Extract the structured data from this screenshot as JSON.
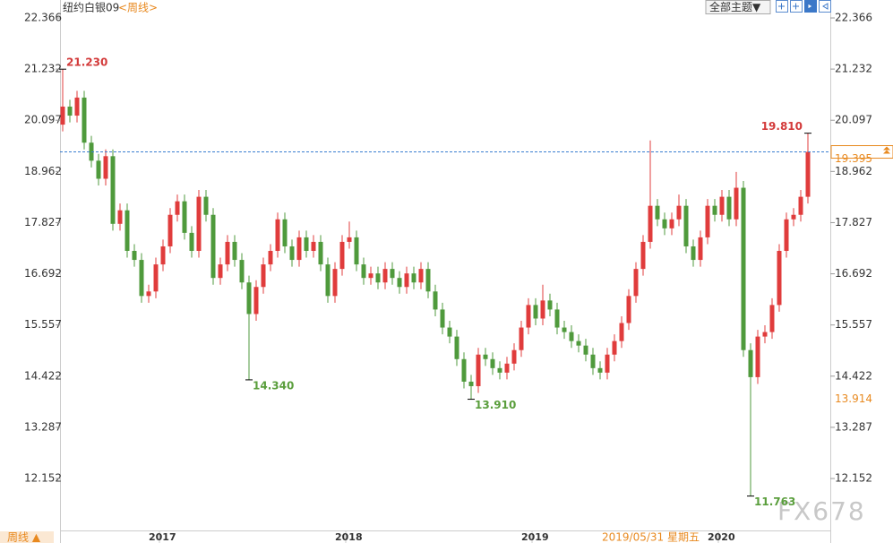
{
  "chart_data": {
    "type": "candlestick",
    "title": "纽约白银09",
    "period": "<周线>",
    "toolbar_button": "全部主题▼",
    "period_button": "周线 ▲",
    "cursor_date": "2019/05/31 星期五",
    "watermark": "FX678",
    "up_color": "#e03c3c",
    "down_color": "#4f9a3c",
    "ylim": [
      11.0,
      22.764
    ],
    "yticks": [
      22.366,
      21.232,
      20.097,
      18.962,
      17.827,
      16.692,
      15.557,
      14.422,
      13.287,
      12.152
    ],
    "last_price": 19.395,
    "ref_price": 13.914,
    "annotations": [
      {
        "value": 21.23,
        "label": "21.230",
        "color": "#d33a3a"
      },
      {
        "value": 14.34,
        "label": "14.340",
        "color": "#5a9e3c"
      },
      {
        "value": 13.91,
        "label": "13.910",
        "color": "#5a9e3c"
      },
      {
        "value": 19.81,
        "label": "19.810",
        "color": "#d33a3a"
      },
      {
        "value": 11.763,
        "label": "11.763",
        "color": "#5a9e3c"
      }
    ],
    "categories": [
      null,
      null,
      null,
      null,
      null,
      null,
      null,
      null,
      null,
      null,
      null,
      null,
      null,
      null,
      "2017",
      null,
      null,
      null,
      null,
      null,
      null,
      null,
      null,
      null,
      null,
      null,
      null,
      null,
      null,
      null,
      null,
      null,
      null,
      null,
      null,
      null,
      null,
      null,
      null,
      null,
      "2018",
      null,
      null,
      null,
      null,
      null,
      null,
      null,
      null,
      null,
      null,
      null,
      null,
      null,
      null,
      null,
      null,
      null,
      null,
      null,
      null,
      null,
      null,
      null,
      null,
      null,
      "2019",
      null,
      null,
      null,
      null,
      null,
      null,
      null,
      null,
      null,
      null,
      null,
      null,
      null,
      null,
      null,
      null,
      null,
      null,
      null,
      null,
      null,
      null,
      null,
      null,
      null,
      "2020",
      null,
      null,
      null,
      null,
      null,
      null,
      null,
      null,
      null,
      null,
      null,
      null
    ],
    "candles": [
      [
        20.0,
        21.23,
        19.85,
        20.4
      ],
      [
        20.4,
        20.55,
        20.05,
        20.2
      ],
      [
        20.2,
        20.75,
        20.05,
        20.6
      ],
      [
        20.6,
        20.75,
        19.45,
        19.6
      ],
      [
        19.6,
        19.75,
        19.05,
        19.2
      ],
      [
        19.2,
        19.35,
        18.65,
        18.8
      ],
      [
        18.8,
        19.45,
        18.65,
        19.3
      ],
      [
        19.3,
        19.45,
        17.65,
        17.8
      ],
      [
        17.8,
        18.25,
        17.65,
        18.1
      ],
      [
        18.1,
        18.25,
        17.05,
        17.2
      ],
      [
        17.2,
        17.35,
        16.85,
        17.0
      ],
      [
        17.0,
        17.15,
        16.05,
        16.2
      ],
      [
        16.2,
        16.45,
        16.05,
        16.3
      ],
      [
        16.3,
        17.05,
        16.15,
        16.9
      ],
      [
        16.9,
        17.45,
        16.75,
        17.3
      ],
      [
        17.3,
        18.15,
        17.15,
        18.0
      ],
      [
        18.0,
        18.45,
        17.85,
        18.3
      ],
      [
        18.3,
        18.45,
        17.45,
        17.6
      ],
      [
        17.6,
        17.75,
        17.05,
        17.2
      ],
      [
        17.2,
        18.55,
        17.05,
        18.4
      ],
      [
        18.4,
        18.55,
        17.85,
        18.0
      ],
      [
        18.0,
        18.15,
        16.45,
        16.6
      ],
      [
        16.6,
        17.05,
        16.45,
        16.9
      ],
      [
        16.9,
        17.55,
        16.75,
        17.4
      ],
      [
        17.4,
        17.55,
        16.85,
        17.0
      ],
      [
        17.0,
        17.15,
        16.35,
        16.5
      ],
      [
        16.5,
        16.65,
        14.34,
        15.8
      ],
      [
        15.8,
        16.55,
        15.65,
        16.4
      ],
      [
        16.4,
        17.05,
        16.25,
        16.9
      ],
      [
        16.9,
        17.35,
        16.75,
        17.2
      ],
      [
        17.2,
        18.05,
        17.05,
        17.9
      ],
      [
        17.9,
        18.05,
        17.15,
        17.3
      ],
      [
        17.3,
        17.45,
        16.85,
        17.0
      ],
      [
        17.0,
        17.65,
        16.85,
        17.5
      ],
      [
        17.5,
        17.65,
        17.05,
        17.2
      ],
      [
        17.2,
        17.55,
        17.05,
        17.4
      ],
      [
        17.4,
        17.55,
        16.75,
        16.9
      ],
      [
        16.9,
        17.05,
        16.05,
        16.2
      ],
      [
        16.2,
        16.95,
        16.05,
        16.8
      ],
      [
        16.8,
        17.55,
        16.65,
        17.4
      ],
      [
        17.4,
        17.85,
        17.25,
        17.5
      ],
      [
        17.5,
        17.65,
        16.75,
        16.9
      ],
      [
        16.9,
        17.05,
        16.45,
        16.6
      ],
      [
        16.6,
        16.85,
        16.45,
        16.7
      ],
      [
        16.7,
        16.85,
        16.35,
        16.5
      ],
      [
        16.5,
        16.95,
        16.35,
        16.8
      ],
      [
        16.8,
        16.95,
        16.45,
        16.6
      ],
      [
        16.6,
        16.75,
        16.25,
        16.4
      ],
      [
        16.4,
        16.85,
        16.25,
        16.7
      ],
      [
        16.7,
        16.85,
        16.35,
        16.5
      ],
      [
        16.5,
        16.95,
        16.35,
        16.8
      ],
      [
        16.8,
        16.95,
        16.15,
        16.3
      ],
      [
        16.3,
        16.45,
        15.75,
        15.9
      ],
      [
        15.9,
        16.05,
        15.35,
        15.5
      ],
      [
        15.5,
        15.65,
        15.15,
        15.3
      ],
      [
        15.3,
        15.45,
        14.65,
        14.8
      ],
      [
        14.8,
        14.95,
        14.15,
        14.3
      ],
      [
        14.3,
        14.45,
        13.91,
        14.2
      ],
      [
        14.2,
        15.05,
        14.05,
        14.9
      ],
      [
        14.9,
        15.05,
        14.65,
        14.8
      ],
      [
        14.8,
        14.95,
        14.45,
        14.6
      ],
      [
        14.6,
        14.75,
        14.35,
        14.5
      ],
      [
        14.5,
        14.85,
        14.35,
        14.7
      ],
      [
        14.7,
        15.15,
        14.55,
        15.0
      ],
      [
        15.0,
        15.65,
        14.85,
        15.5
      ],
      [
        15.5,
        16.15,
        15.35,
        16.0
      ],
      [
        16.0,
        16.15,
        15.55,
        15.7
      ],
      [
        15.7,
        16.45,
        15.55,
        16.1
      ],
      [
        16.1,
        16.25,
        15.75,
        15.9
      ],
      [
        15.9,
        16.05,
        15.35,
        15.5
      ],
      [
        15.5,
        15.65,
        15.25,
        15.4
      ],
      [
        15.4,
        15.55,
        15.05,
        15.2
      ],
      [
        15.2,
        15.35,
        14.95,
        15.1
      ],
      [
        15.1,
        15.25,
        14.75,
        14.9
      ],
      [
        14.9,
        15.05,
        14.45,
        14.6
      ],
      [
        14.6,
        14.75,
        14.35,
        14.5
      ],
      [
        14.5,
        15.05,
        14.35,
        14.9
      ],
      [
        14.9,
        15.35,
        14.75,
        15.2
      ],
      [
        15.2,
        15.75,
        15.05,
        15.6
      ],
      [
        15.6,
        16.35,
        15.45,
        16.2
      ],
      [
        16.2,
        16.95,
        16.05,
        16.8
      ],
      [
        16.8,
        17.55,
        16.65,
        17.4
      ],
      [
        17.4,
        19.65,
        17.25,
        18.2
      ],
      [
        18.2,
        18.35,
        17.75,
        17.9
      ],
      [
        17.9,
        18.05,
        17.55,
        17.7
      ],
      [
        17.7,
        18.05,
        17.55,
        17.9
      ],
      [
        17.9,
        18.45,
        17.75,
        18.2
      ],
      [
        18.2,
        18.35,
        17.15,
        17.3
      ],
      [
        17.3,
        17.45,
        16.85,
        17.0
      ],
      [
        17.0,
        17.65,
        16.85,
        17.5
      ],
      [
        17.5,
        18.35,
        17.35,
        18.2
      ],
      [
        18.2,
        18.35,
        17.85,
        18.0
      ],
      [
        18.0,
        18.55,
        17.85,
        18.4
      ],
      [
        18.4,
        18.55,
        17.75,
        17.9
      ],
      [
        17.9,
        18.95,
        17.75,
        18.6
      ],
      [
        18.6,
        18.75,
        14.85,
        15.0
      ],
      [
        15.0,
        15.15,
        11.763,
        14.4
      ],
      [
        14.4,
        15.45,
        14.25,
        15.3
      ],
      [
        15.3,
        15.55,
        15.15,
        15.4
      ],
      [
        15.4,
        16.15,
        15.25,
        16.0
      ],
      [
        16.0,
        17.35,
        15.85,
        17.2
      ],
      [
        17.2,
        18.05,
        17.05,
        17.9
      ],
      [
        17.9,
        18.15,
        17.75,
        18.0
      ],
      [
        18.0,
        18.55,
        17.85,
        18.4
      ],
      [
        18.4,
        19.81,
        18.25,
        19.395
      ]
    ]
  }
}
